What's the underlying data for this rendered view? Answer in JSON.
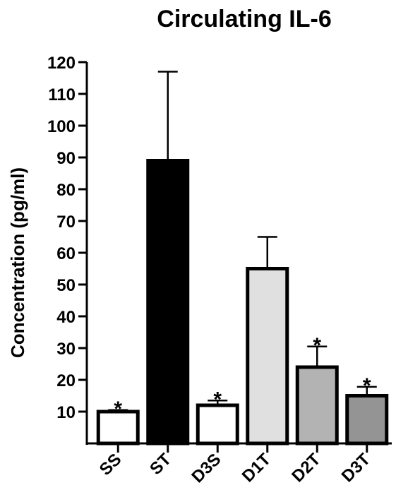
{
  "chart_data": {
    "type": "bar",
    "title": "Circulating IL-6",
    "ylabel": "Concentration  (pg/ml)",
    "xlabel": "",
    "ylim": [
      0,
      120
    ],
    "yticks": [
      10,
      20,
      30,
      40,
      50,
      60,
      70,
      80,
      90,
      100,
      110,
      120
    ],
    "grid": false,
    "categories": [
      "SS",
      "ST",
      "D3S",
      "D1T",
      "D2T",
      "D3T"
    ],
    "values": [
      10,
      89,
      12,
      55,
      24,
      15
    ],
    "errors": [
      0.5,
      28,
      1.5,
      10,
      6.5,
      2.8
    ],
    "colors": [
      "#ffffff",
      "#000000",
      "#ffffff",
      "#e0e0e0",
      "#b3b3b3",
      "#949494"
    ],
    "annotations": [
      "*",
      "",
      "*",
      "",
      "*",
      "*"
    ]
  }
}
